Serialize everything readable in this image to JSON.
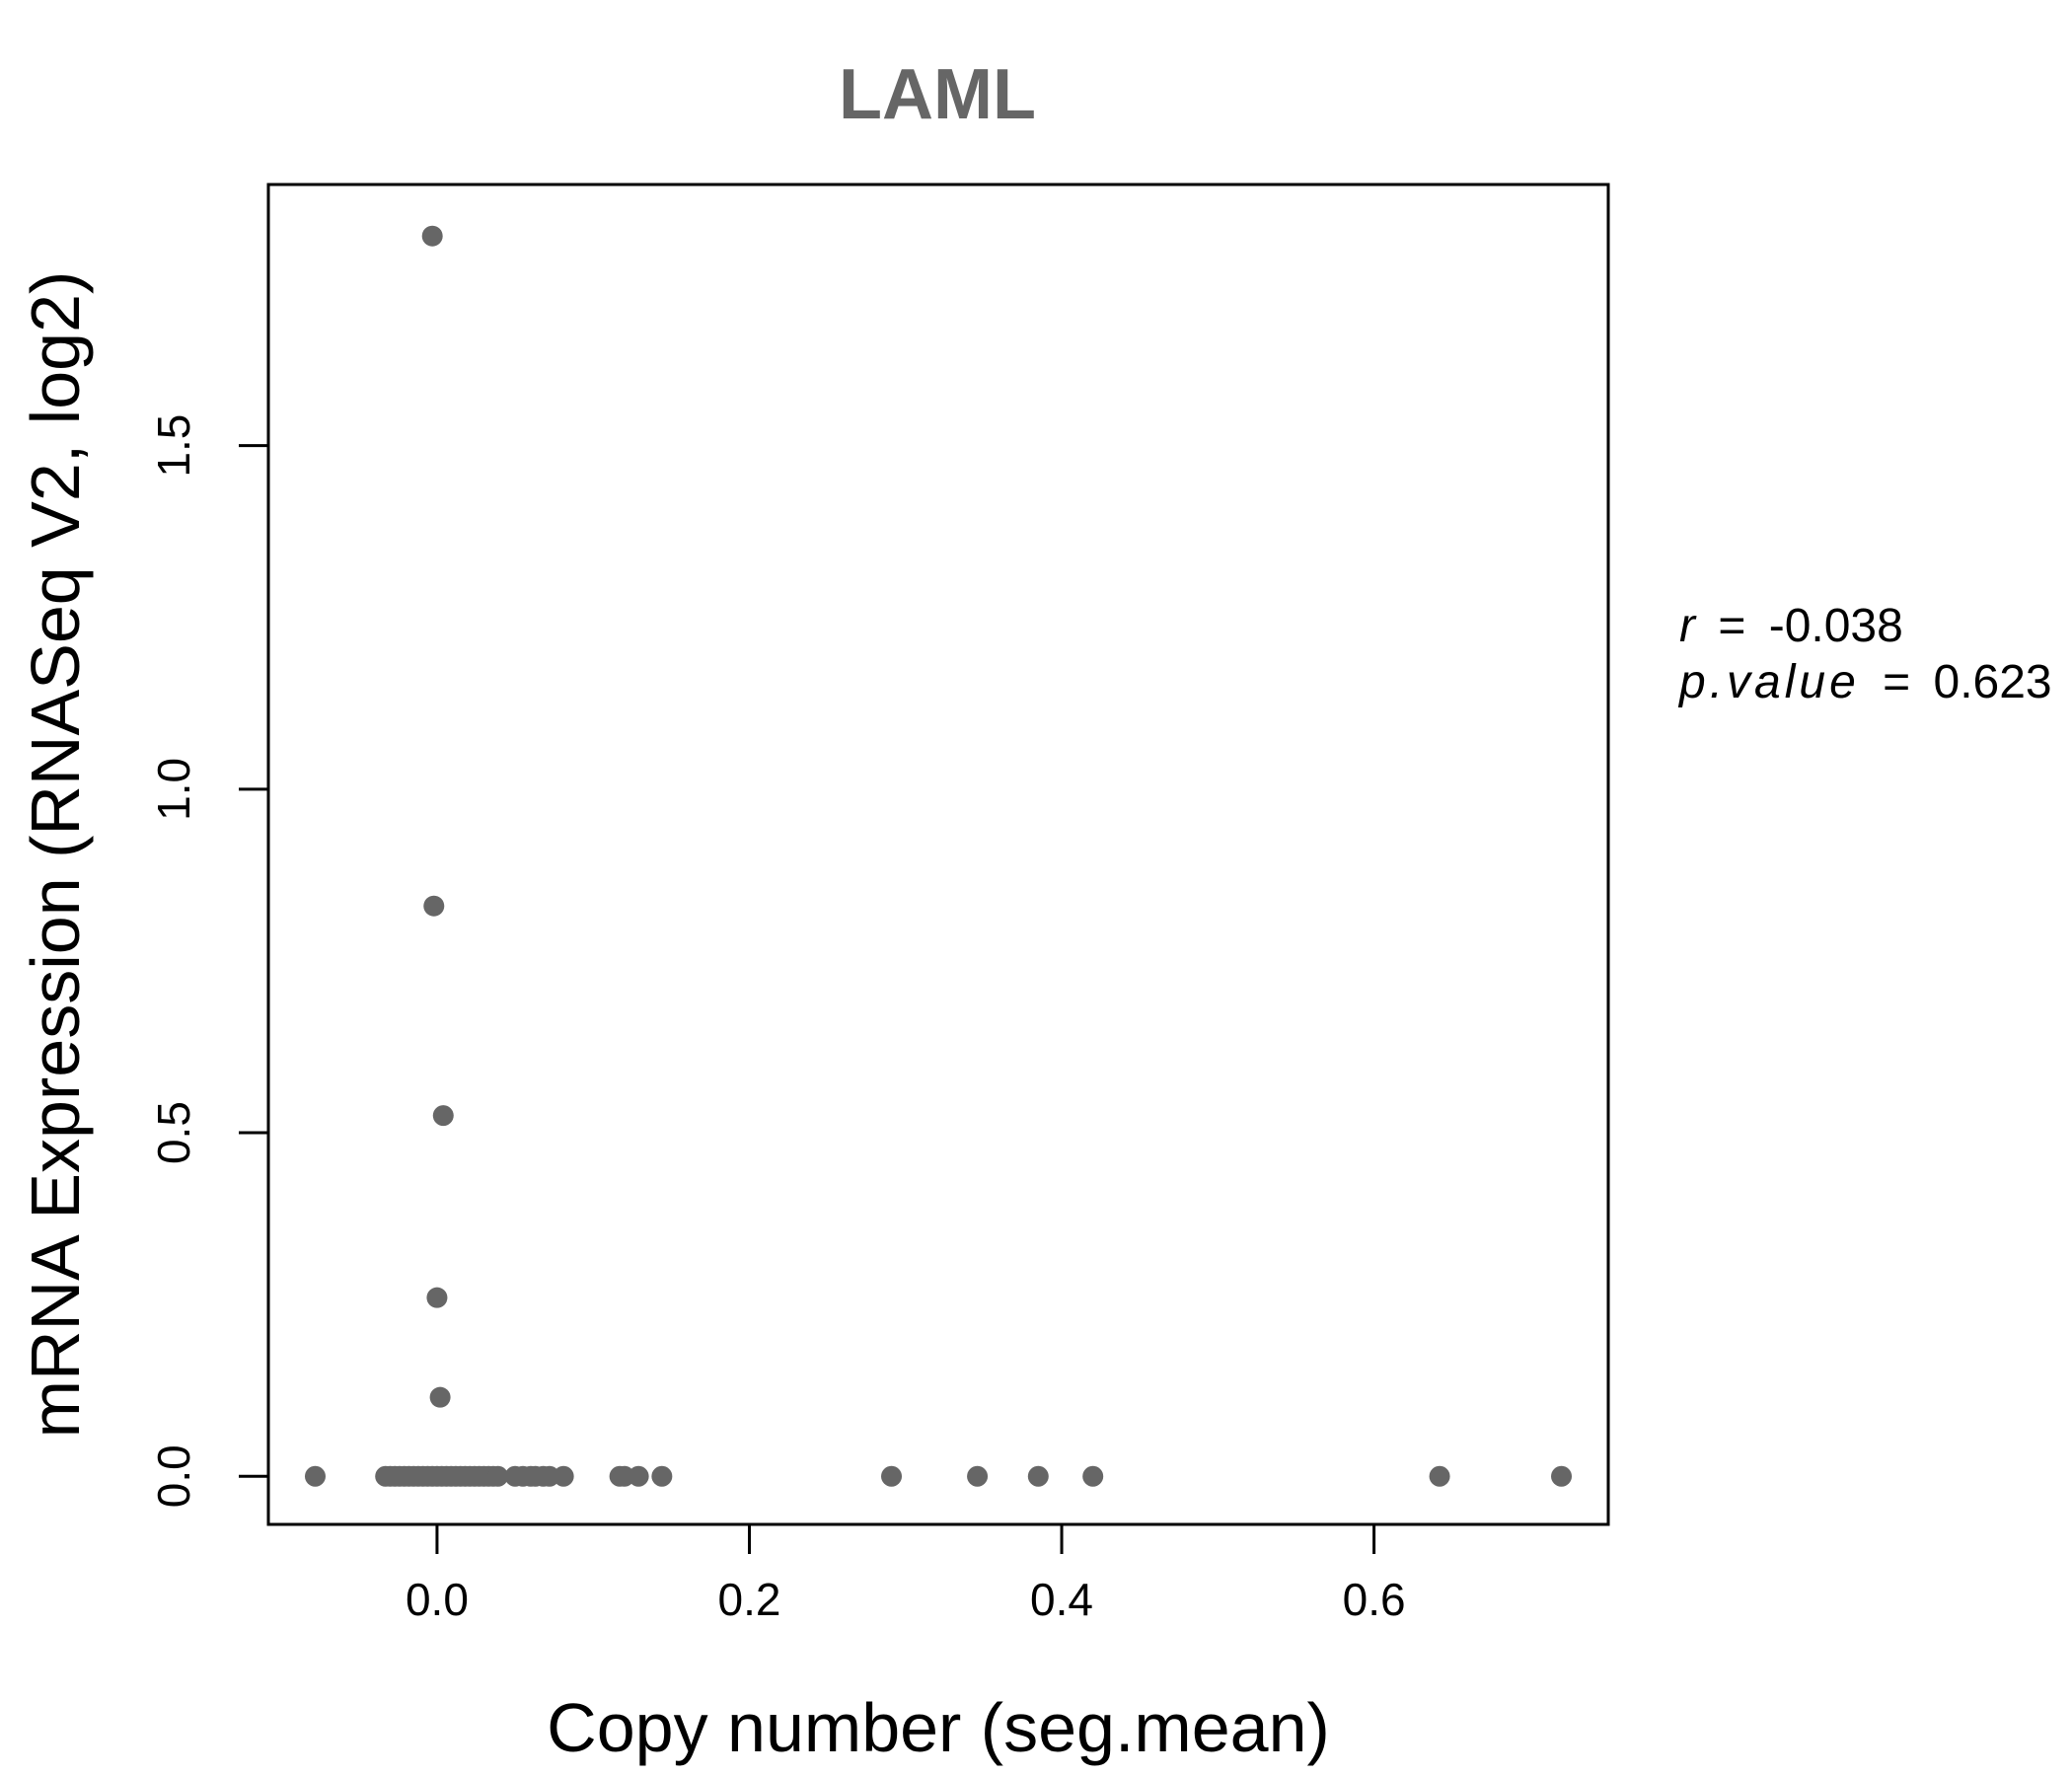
{
  "chart_data": {
    "type": "scatter",
    "title": "LAML",
    "xlabel": "Copy number (seg.mean)",
    "ylabel": "mRNA Expression (RNASeq V2, log2)",
    "xlim": [
      -0.108,
      0.75
    ],
    "ylim": [
      -0.07,
      1.88
    ],
    "xticks": [
      0.0,
      0.2,
      0.4,
      0.6
    ],
    "xtick_labels": [
      "0.0",
      "0.2",
      "0.4",
      "0.6"
    ],
    "yticks": [
      0.0,
      0.5,
      1.0,
      1.5
    ],
    "ytick_labels": [
      "0.0",
      "0.5",
      "1.0",
      "1.5"
    ],
    "grid": false,
    "point_color": "#666666",
    "points": [
      {
        "x": -0.003,
        "y": 1.805
      },
      {
        "x": -0.002,
        "y": 0.83
      },
      {
        "x": 0.004,
        "y": 0.525
      },
      {
        "x": 0.0,
        "y": 0.26
      },
      {
        "x": 0.002,
        "y": 0.115
      },
      {
        "x": -0.078,
        "y": 0.0
      },
      {
        "x": -0.033,
        "y": 0.0
      },
      {
        "x": -0.03,
        "y": 0.0
      },
      {
        "x": -0.027,
        "y": 0.0
      },
      {
        "x": -0.024,
        "y": 0.0
      },
      {
        "x": -0.021,
        "y": 0.0
      },
      {
        "x": -0.018,
        "y": 0.0
      },
      {
        "x": -0.015,
        "y": 0.0
      },
      {
        "x": -0.012,
        "y": 0.0
      },
      {
        "x": -0.009,
        "y": 0.0
      },
      {
        "x": -0.006,
        "y": 0.0
      },
      {
        "x": -0.003,
        "y": 0.0
      },
      {
        "x": 0.0,
        "y": 0.0
      },
      {
        "x": 0.003,
        "y": 0.0
      },
      {
        "x": 0.006,
        "y": 0.0
      },
      {
        "x": 0.009,
        "y": 0.0
      },
      {
        "x": 0.012,
        "y": 0.0
      },
      {
        "x": 0.015,
        "y": 0.0
      },
      {
        "x": 0.018,
        "y": 0.0
      },
      {
        "x": 0.021,
        "y": 0.0
      },
      {
        "x": 0.024,
        "y": 0.0
      },
      {
        "x": 0.027,
        "y": 0.0
      },
      {
        "x": 0.03,
        "y": 0.0
      },
      {
        "x": 0.033,
        "y": 0.0
      },
      {
        "x": 0.036,
        "y": 0.0
      },
      {
        "x": 0.039,
        "y": 0.0
      },
      {
        "x": 0.05,
        "y": 0.0
      },
      {
        "x": 0.055,
        "y": 0.0
      },
      {
        "x": 0.06,
        "y": 0.0
      },
      {
        "x": 0.063,
        "y": 0.0
      },
      {
        "x": 0.068,
        "y": 0.0
      },
      {
        "x": 0.072,
        "y": 0.0
      },
      {
        "x": 0.081,
        "y": 0.0
      },
      {
        "x": 0.117,
        "y": 0.0
      },
      {
        "x": 0.12,
        "y": 0.0
      },
      {
        "x": 0.129,
        "y": 0.0
      },
      {
        "x": 0.144,
        "y": 0.0
      },
      {
        "x": 0.291,
        "y": 0.0
      },
      {
        "x": 0.346,
        "y": 0.0
      },
      {
        "x": 0.385,
        "y": 0.0
      },
      {
        "x": 0.42,
        "y": 0.0
      },
      {
        "x": 0.642,
        "y": 0.0
      },
      {
        "x": 0.72,
        "y": 0.0
      }
    ],
    "annotation": {
      "r_label": "r",
      "r_value": "-0.038",
      "p_label": "p.value",
      "p_value": "0.623",
      "equals": "="
    }
  }
}
